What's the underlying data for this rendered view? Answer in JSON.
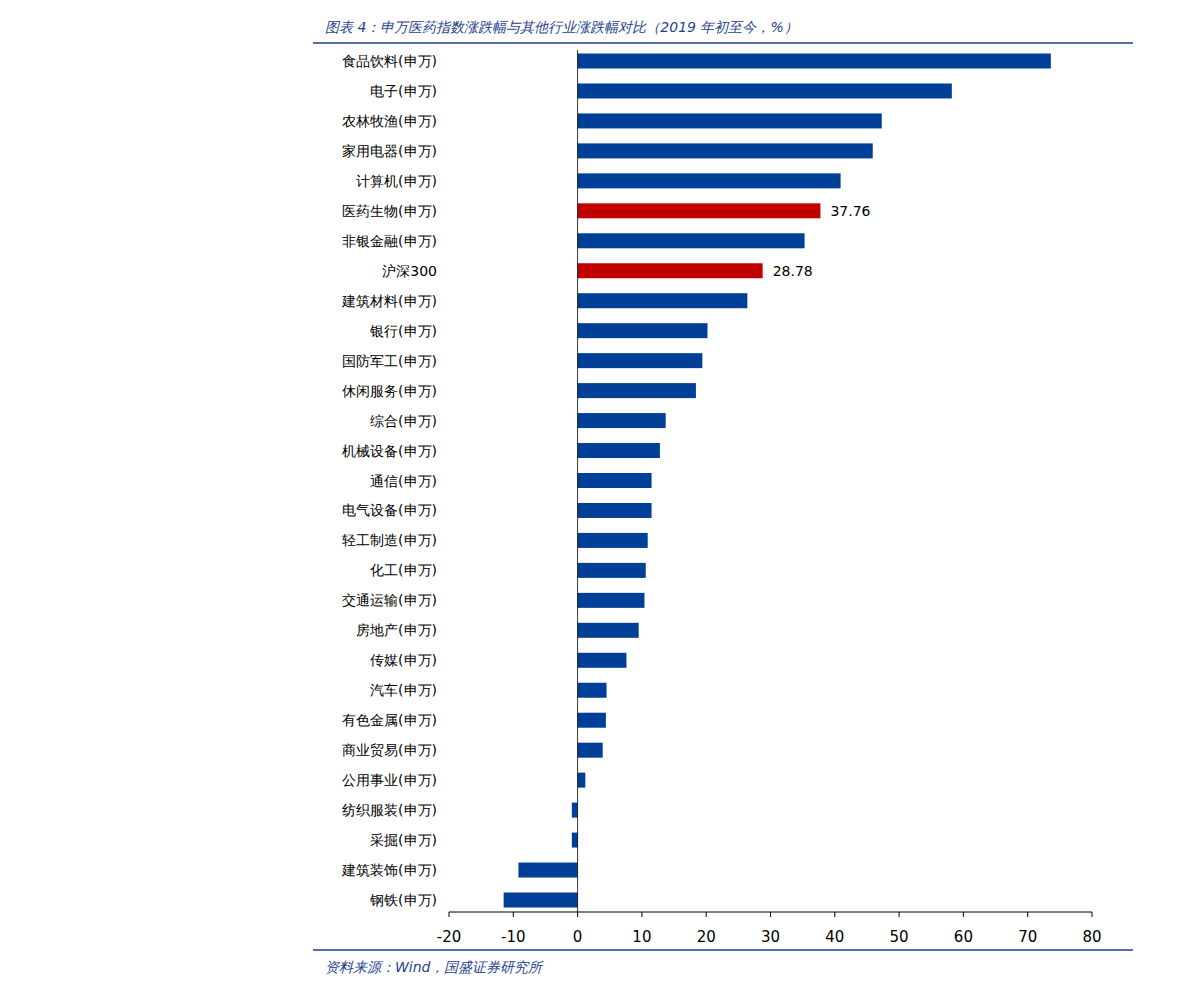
{
  "chart_data": {
    "type": "bar",
    "orientation": "horizontal",
    "title": "图表 4：申万医药指数涨跌幅与其他行业涨跌幅对比（2019 年初至今，%）",
    "source": "资料来源：Wind，国盛证券研究所",
    "categories": [
      "食品饮料(申万)",
      "电子(申万)",
      "农林牧渔(申万)",
      "家用电器(申万)",
      "计算机(申万)",
      "医药生物(申万)",
      "非银金融(申万)",
      "沪深300",
      "建筑材料(申万)",
      "银行(申万)",
      "国防军工(申万)",
      "休闲服务(申万)",
      "综合(申万)",
      "机械设备(申万)",
      "通信(申万)",
      "电气设备(申万)",
      "轻工制造(申万)",
      "化工(申万)",
      "交通运输(申万)",
      "房地产(申万)",
      "传媒(申万)",
      "汽车(申万)",
      "有色金属(申万)",
      "商业贸易(申万)",
      "公用事业(申万)",
      "纺织服装(申万)",
      "采掘(申万)",
      "建筑装饰(申万)",
      "钢铁(申万)"
    ],
    "values": [
      73.6,
      58.2,
      47.3,
      45.9,
      40.9,
      37.76,
      35.3,
      28.78,
      26.4,
      20.2,
      19.4,
      18.4,
      13.7,
      12.8,
      11.5,
      11.5,
      10.9,
      10.6,
      10.4,
      9.5,
      7.6,
      4.5,
      4.4,
      3.9,
      1.2,
      -0.9,
      -0.9,
      -9.2,
      -11.5
    ],
    "value_labels": [
      null,
      null,
      null,
      null,
      null,
      "37.76",
      null,
      "28.78",
      null,
      null,
      null,
      null,
      null,
      null,
      null,
      null,
      null,
      null,
      null,
      null,
      null,
      null,
      null,
      null,
      null,
      null,
      null,
      null,
      null
    ],
    "colors": [
      "#003f98",
      "#003f98",
      "#003f98",
      "#003f98",
      "#003f98",
      "#c00000",
      "#003f98",
      "#c00000",
      "#003f98",
      "#003f98",
      "#003f98",
      "#003f98",
      "#003f98",
      "#003f98",
      "#003f98",
      "#003f98",
      "#003f98",
      "#003f98",
      "#003f98",
      "#003f98",
      "#003f98",
      "#003f98",
      "#003f98",
      "#003f98",
      "#003f98",
      "#003f98",
      "#003f98",
      "#003f98",
      "#003f98"
    ],
    "xlim": [
      -20,
      80
    ],
    "xticks": [
      -20,
      -10,
      0,
      10,
      20,
      30,
      40,
      50,
      60,
      70,
      80
    ],
    "grid": false
  }
}
